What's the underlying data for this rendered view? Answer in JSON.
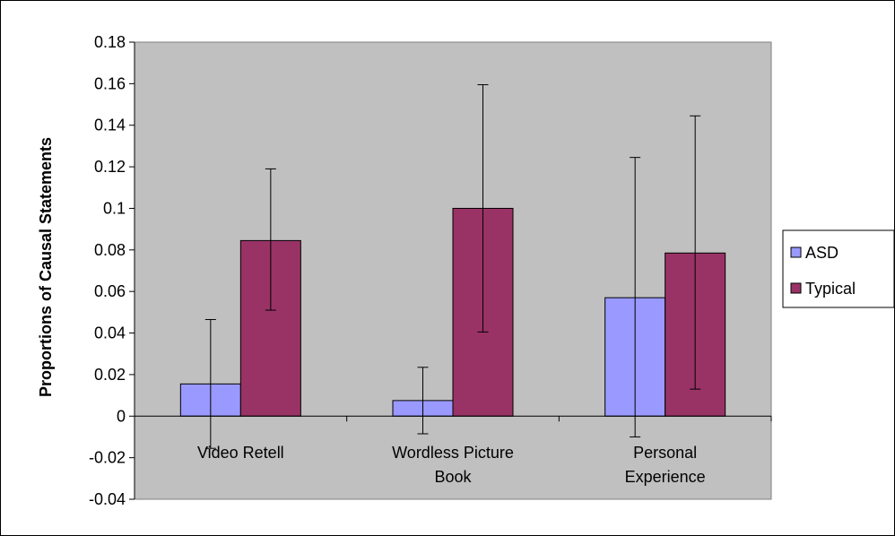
{
  "chart_data": {
    "type": "bar",
    "title": "",
    "xlabel": "",
    "ylabel": "Proportions of Causal Statements",
    "ylim": [
      -0.04,
      0.18
    ],
    "y_ticks": [
      "-0.04",
      "-0.02",
      "0",
      "0.02",
      "0.04",
      "0.06",
      "0.08",
      "0.1",
      "0.12",
      "0.14",
      "0.16",
      "0.18"
    ],
    "y_tick_values": [
      -0.04,
      -0.02,
      0,
      0.02,
      0.04,
      0.06,
      0.08,
      0.1,
      0.12,
      0.14,
      0.16,
      0.18
    ],
    "categories": [
      [
        "Video Retell"
      ],
      [
        "Wordless Picture",
        "Book"
      ],
      [
        "Personal",
        "Experience"
      ]
    ],
    "series": [
      {
        "name": "ASD",
        "color": "#9999ff",
        "values": [
          0.0155,
          0.0075,
          0.057
        ],
        "error_low": [
          -0.0155,
          -0.0085,
          -0.01
        ],
        "error_high": [
          0.0465,
          0.0235,
          0.1245
        ]
      },
      {
        "name": "Typical",
        "color": "#993366",
        "values": [
          0.0845,
          0.1,
          0.0785
        ],
        "error_low": [
          0.051,
          0.0405,
          0.013
        ],
        "error_high": [
          0.119,
          0.1595,
          0.1445
        ]
      }
    ],
    "legend_position": "right",
    "plot_background": "#c0c0c0",
    "grid": false
  }
}
